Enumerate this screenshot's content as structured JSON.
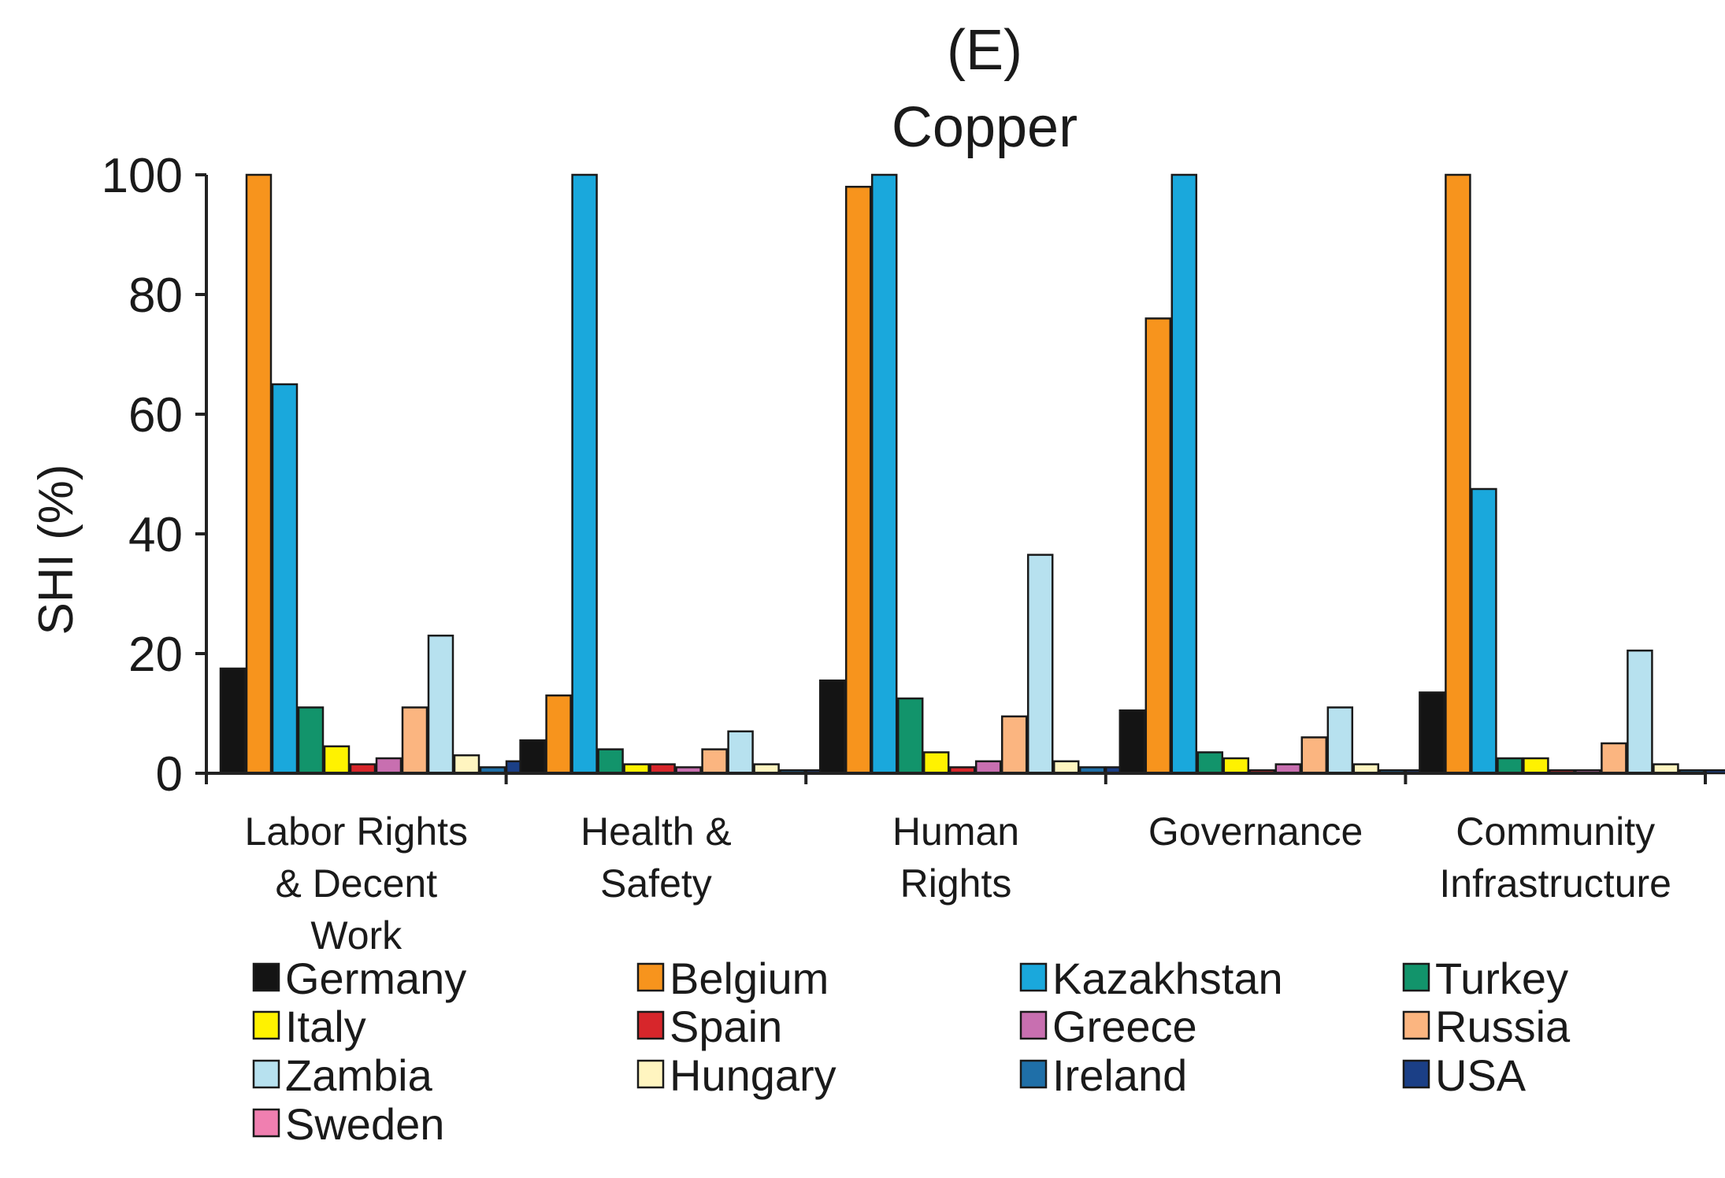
{
  "chart_data": {
    "type": "bar",
    "title": "(E)",
    "subtitle": "Copper",
    "xlabel": "",
    "ylabel": "SHI (%)",
    "ylim": [
      0,
      100
    ],
    "yticks": [
      "0",
      "20",
      "40",
      "60",
      "80",
      "100"
    ],
    "grid": false,
    "legend_position": "bottom",
    "categories": [
      [
        "Labor Rights",
        "& Decent",
        "Work"
      ],
      [
        "Health &",
        "Safety"
      ],
      [
        "Human",
        "Rights"
      ],
      [
        "Governance"
      ],
      [
        "Community",
        "Infrastructure"
      ]
    ],
    "series": [
      {
        "name": "Germany",
        "color": "#141414",
        "values": [
          17.5,
          5.5,
          15.5,
          10.5,
          13.5
        ]
      },
      {
        "name": "Belgium",
        "color": "#f7941d",
        "values": [
          100,
          13,
          98,
          76,
          100
        ]
      },
      {
        "name": "Kazakhstan",
        "color": "#1aa8dc",
        "values": [
          65,
          100,
          100,
          100,
          47.5
        ]
      },
      {
        "name": "Turkey",
        "color": "#12946b",
        "values": [
          11,
          4,
          12.5,
          3.5,
          2.5
        ]
      },
      {
        "name": "Italy",
        "color": "#fff200",
        "values": [
          4.5,
          1.5,
          3.5,
          2.5,
          2.5
        ]
      },
      {
        "name": "Spain",
        "color": "#d7262b",
        "values": [
          1.5,
          1.5,
          1,
          0.5,
          0.5
        ]
      },
      {
        "name": "Greece",
        "color": "#c86fb0",
        "values": [
          2.5,
          1,
          2,
          1.5,
          0.5
        ]
      },
      {
        "name": "Russia",
        "color": "#fbb580",
        "values": [
          11,
          4,
          9.5,
          6,
          5
        ]
      },
      {
        "name": "Zambia",
        "color": "#b7e1ef",
        "values": [
          23,
          7,
          36.5,
          11,
          20.5
        ]
      },
      {
        "name": "Hungary",
        "color": "#fff5c0",
        "values": [
          3,
          1.5,
          2,
          1.5,
          1.5
        ]
      },
      {
        "name": "Ireland",
        "color": "#1f6fa8",
        "values": [
          1,
          0.5,
          1,
          0.5,
          0.5
        ]
      },
      {
        "name": "USA",
        "color": "#1b3f86",
        "values": [
          2,
          0.5,
          1,
          0.5,
          0.5
        ]
      },
      {
        "name": "Sweden",
        "color": "#f07fb0",
        "values": [
          1,
          0.5,
          0.5,
          0.5,
          0.5
        ]
      }
    ]
  }
}
